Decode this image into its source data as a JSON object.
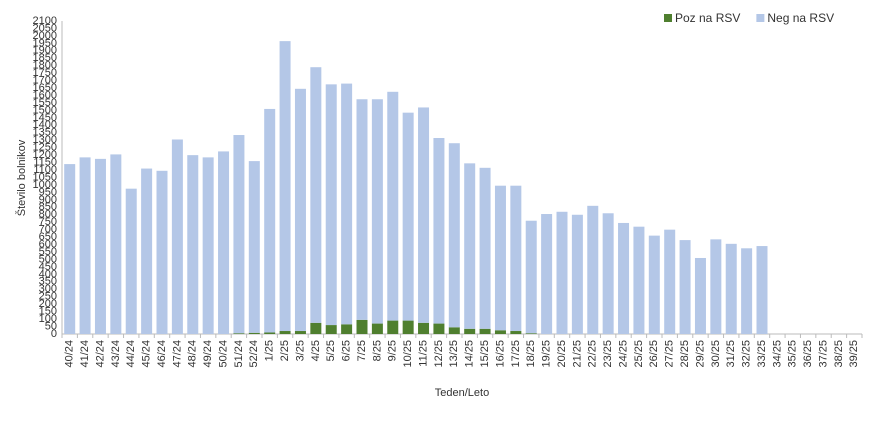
{
  "chart_data": {
    "type": "stacked-bar",
    "y_label": "Število bolnikov",
    "x_label": "Teden/Leto",
    "categories": [
      "40/24",
      "41/24",
      "42/24",
      "43/24",
      "44/24",
      "45/24",
      "46/24",
      "47/24",
      "48/24",
      "49/24",
      "50/24",
      "51/24",
      "52/24",
      "1/25",
      "2/25",
      "3/25",
      "4/25",
      "5/25",
      "6/25",
      "7/25",
      "8/25",
      "9/25",
      "10/25",
      "11/25",
      "12/25",
      "13/25",
      "14/25",
      "15/25",
      "16/25",
      "17/25",
      "18/25",
      "19/25",
      "20/25",
      "21/25",
      "22/25",
      "23/25",
      "24/25",
      "25/25",
      "26/25",
      "27/25",
      "28/25",
      "29/25",
      "30/25",
      "31/25",
      "32/25",
      "33/25",
      "34/25",
      "35/25",
      "36/25",
      "37/25",
      "38/25",
      "39/25"
    ],
    "series": [
      {
        "name": "Poz na RSV",
        "color": "#4f7f2f",
        "values": [
          0,
          0,
          0,
          0,
          0,
          0,
          0,
          0,
          0,
          0,
          0,
          5,
          8,
          10,
          20,
          20,
          75,
          60,
          65,
          95,
          70,
          90,
          90,
          75,
          70,
          45,
          35,
          35,
          25,
          20,
          5,
          0,
          0,
          0,
          0,
          0,
          0,
          0,
          0,
          0,
          0,
          0,
          0,
          0,
          0,
          0,
          null,
          null,
          null,
          null,
          null,
          null
        ]
      },
      {
        "name": "Neg na RSV",
        "color": "#b4c7e7",
        "values": [
          1140,
          1185,
          1175,
          1205,
          975,
          1110,
          1095,
          1305,
          1200,
          1185,
          1225,
          1330,
          1152,
          1500,
          1945,
          1625,
          1715,
          1615,
          1615,
          1480,
          1505,
          1535,
          1395,
          1445,
          1245,
          1235,
          1110,
          1080,
          970,
          975,
          755,
          805,
          820,
          800,
          860,
          810,
          745,
          720,
          660,
          700,
          630,
          510,
          635,
          605,
          575,
          590,
          null,
          null,
          null,
          null,
          null,
          null
        ]
      }
    ],
    "ylim": [
      0,
      2100
    ],
    "yticks": [
      0,
      50,
      100,
      150,
      200,
      250,
      300,
      350,
      400,
      450,
      500,
      550,
      600,
      650,
      700,
      750,
      800,
      850,
      900,
      950,
      1000,
      1050,
      1100,
      1150,
      1200,
      1250,
      1300,
      1350,
      1400,
      1450,
      1500,
      1550,
      1600,
      1650,
      1700,
      1750,
      1800,
      1850,
      1900,
      1950,
      2000,
      2050,
      2100
    ],
    "legend": "top-right"
  }
}
